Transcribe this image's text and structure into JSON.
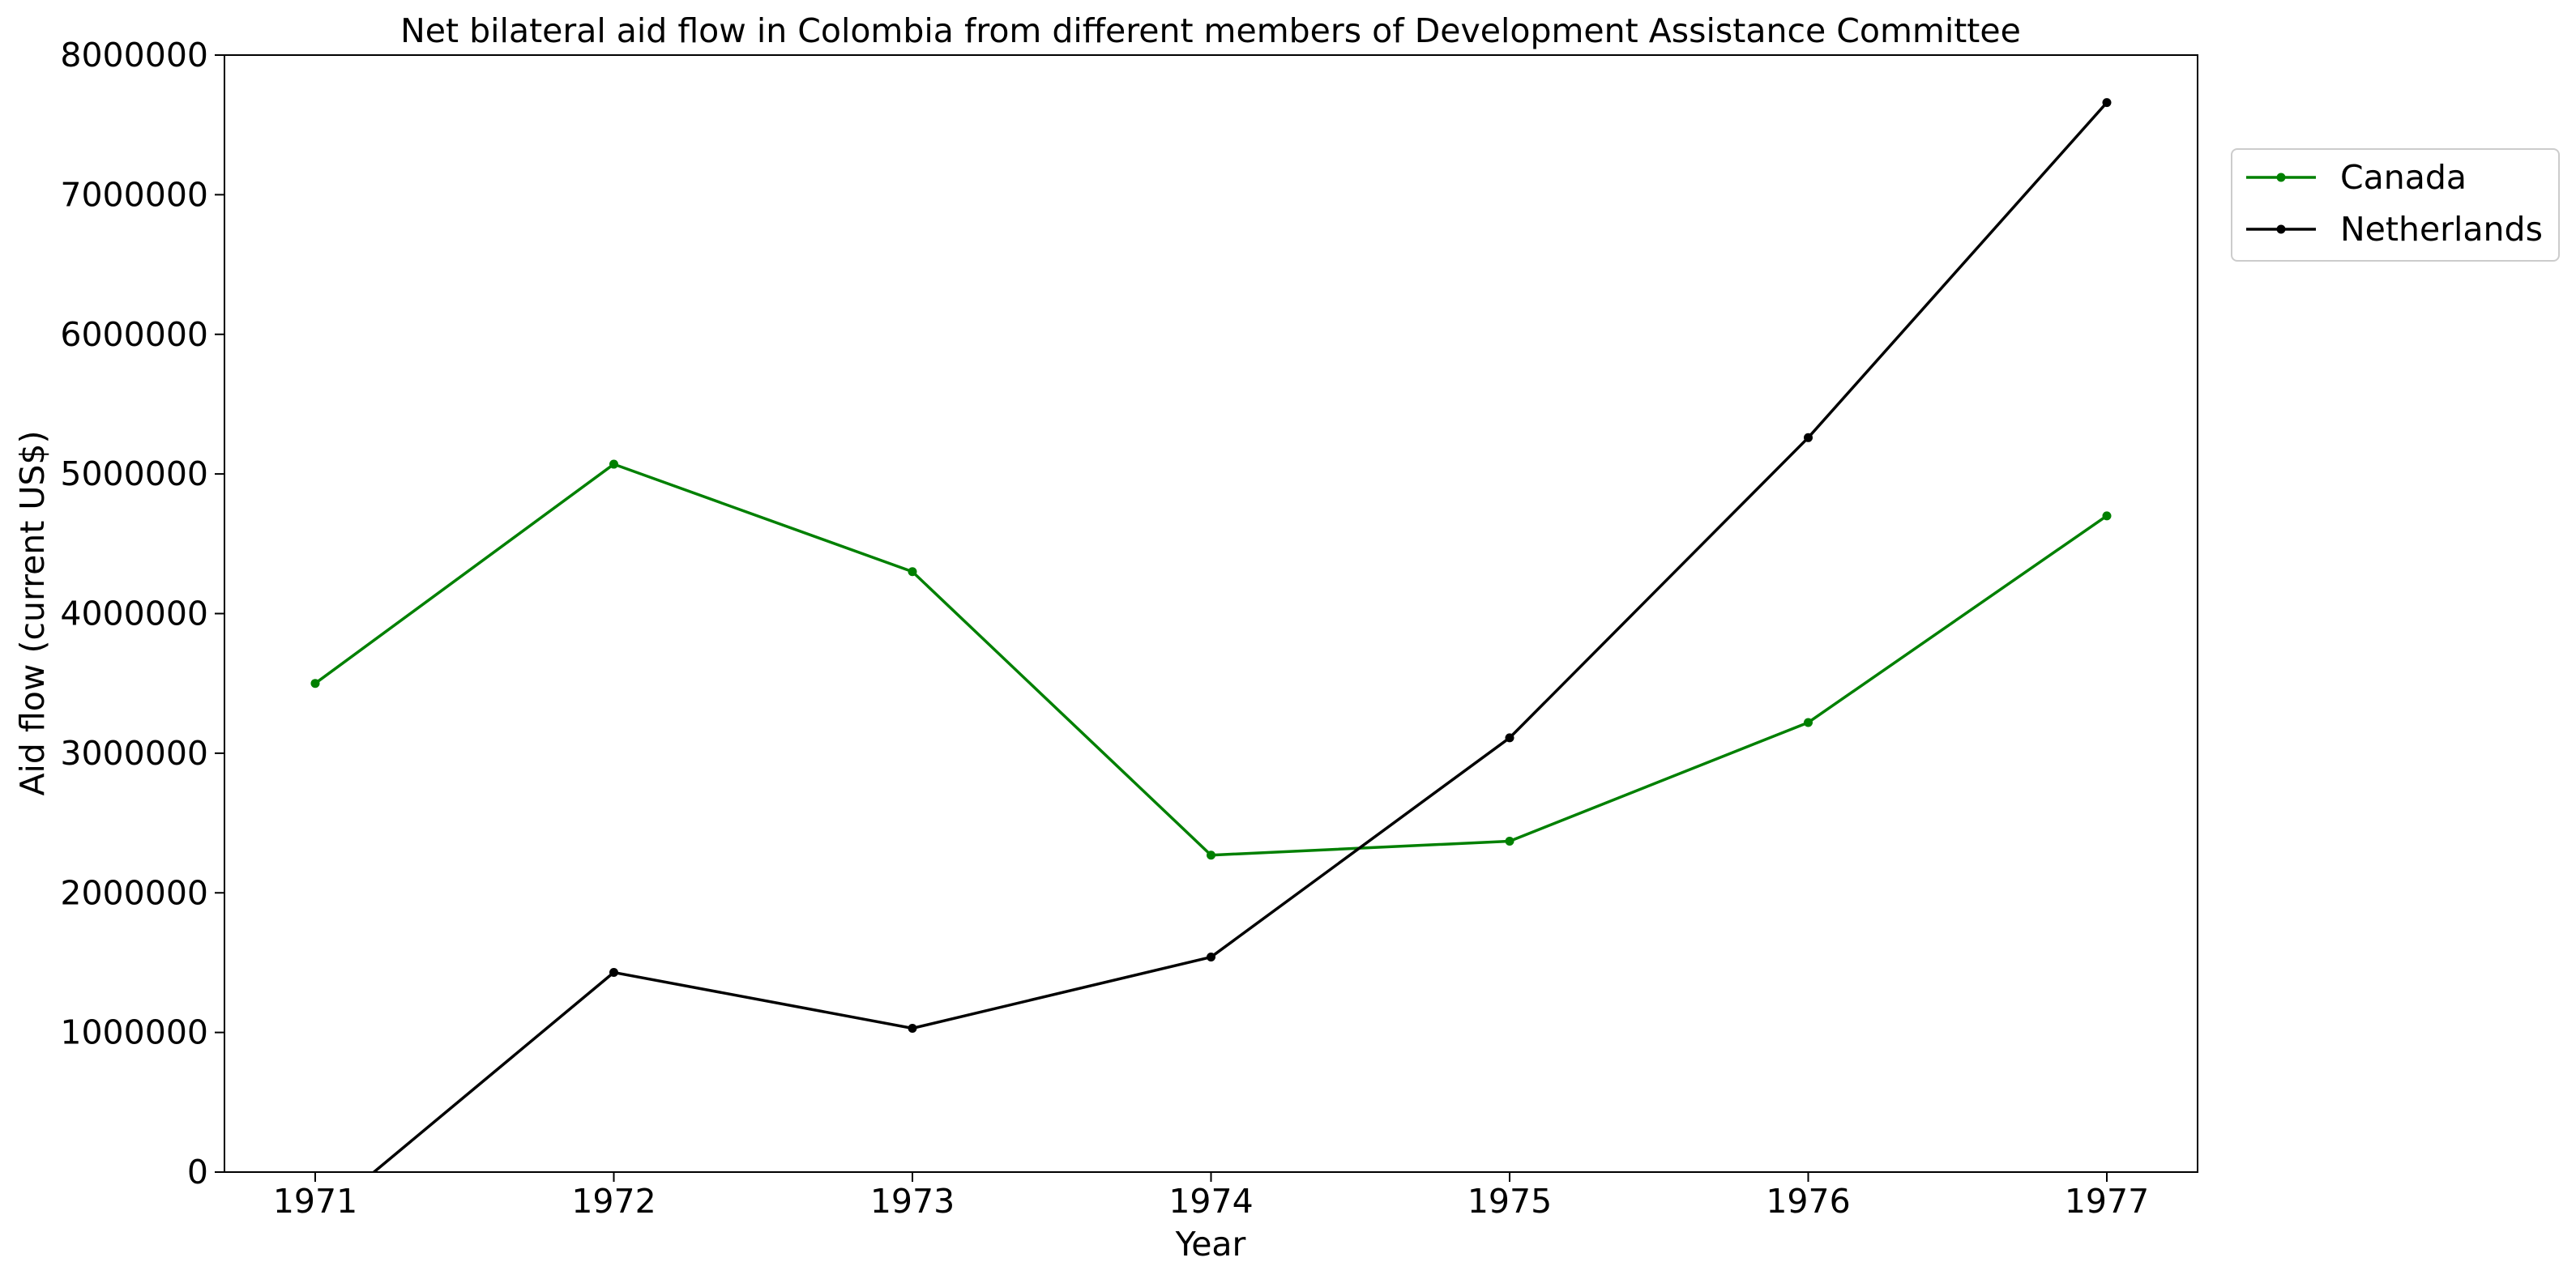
{
  "chart_data": {
    "type": "line",
    "title": "Net bilateral aid flow in Colombia from different members of Development Assistance Committee",
    "xlabel": "Year",
    "ylabel": "Aid flow (current US$)",
    "x": [
      "1971",
      "1972",
      "1973",
      "1974",
      "1975",
      "1976",
      "1977"
    ],
    "ylim": [
      0,
      8000000
    ],
    "yticks": [
      "0",
      "1000000",
      "2000000",
      "3000000",
      "4000000",
      "5000000",
      "6000000",
      "7000000",
      "8000000"
    ],
    "grid": false,
    "legend_position": "outside-top-right",
    "series": [
      {
        "name": "Canada",
        "color": "#008000",
        "values": [
          3500000,
          5070000,
          4300000,
          2270000,
          2370000,
          3220000,
          4700000
        ]
      },
      {
        "name": "Netherlands",
        "color": "#000000",
        "values": [
          -350000,
          1430000,
          1030000,
          1540000,
          3110000,
          5260000,
          7660000
        ]
      }
    ]
  }
}
